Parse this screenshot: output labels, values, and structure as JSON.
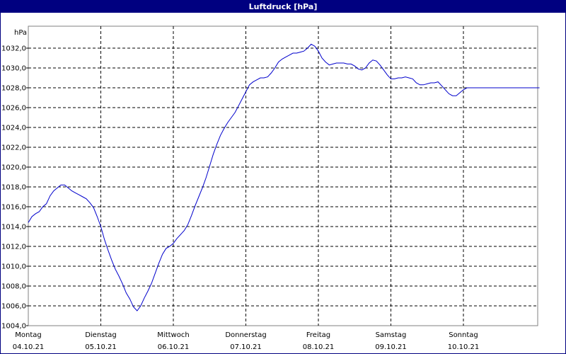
{
  "chart_data": {
    "type": "line",
    "title": "Luftdruck [hPa]",
    "ylabel": "hPa",
    "xlabel": "",
    "ylim": [
      1004.0,
      1033.0
    ],
    "yticks": [
      "1004,0",
      "1006,0",
      "1008,0",
      "1010,0",
      "1012,0",
      "1014,0",
      "1016,0",
      "1018,0",
      "1020,0",
      "1022,0",
      "1024,0",
      "1026,0",
      "1028,0",
      "1030,0",
      "1032,0"
    ],
    "ytick_values": [
      1004,
      1006,
      1008,
      1010,
      1012,
      1014,
      1016,
      1018,
      1020,
      1022,
      1024,
      1026,
      1028,
      1030,
      1032
    ],
    "xticks": [
      {
        "day": "Montag",
        "date": "04.10.21"
      },
      {
        "day": "Dienstag",
        "date": "05.10.21"
      },
      {
        "day": "Mittwoch",
        "date": "06.10.21"
      },
      {
        "day": "Donnerstag",
        "date": "07.10.21"
      },
      {
        "day": "Freitag",
        "date": "08.10.21"
      },
      {
        "day": "Samstag",
        "date": "09.10.21"
      },
      {
        "day": "Sonntag",
        "date": "10.10.21"
      }
    ],
    "xlim_days": [
      0,
      7.1
    ],
    "grid": true,
    "grid_style": "dashed",
    "line_color": "#0000cc",
    "series": [
      {
        "x_days": [
          0,
          0.05,
          0.1,
          0.15,
          0.2,
          0.25,
          0.3,
          0.35,
          0.4,
          0.45,
          0.5,
          0.55,
          0.6,
          0.65,
          0.7,
          0.75,
          0.8,
          0.85,
          0.9,
          0.95,
          1.0,
          1.05,
          1.1,
          1.15,
          1.2,
          1.25,
          1.3,
          1.35,
          1.4,
          1.45,
          1.5,
          1.55,
          1.6,
          1.65,
          1.7,
          1.75,
          1.8,
          1.85,
          1.9,
          1.95,
          2.0,
          2.05,
          2.1,
          2.15,
          2.2,
          2.25,
          2.3,
          2.35,
          2.4,
          2.45,
          2.5,
          2.55,
          2.6,
          2.65,
          2.7,
          2.75,
          2.8,
          2.85,
          2.9,
          2.95,
          3.0,
          3.05,
          3.1,
          3.15,
          3.2,
          3.25,
          3.3,
          3.35,
          3.4,
          3.45,
          3.5,
          3.55,
          3.6,
          3.65,
          3.7,
          3.75,
          3.8,
          3.85,
          3.9,
          3.95,
          4.0,
          4.05,
          4.1,
          4.15,
          4.2,
          4.25,
          4.3,
          4.35,
          4.4,
          4.45,
          4.5,
          4.55,
          4.6,
          4.65,
          4.7,
          4.75,
          4.8,
          4.85,
          4.9,
          4.95,
          5.0,
          5.05,
          5.1,
          5.15,
          5.2,
          5.25,
          5.3,
          5.35,
          5.4,
          5.45,
          5.5,
          5.55,
          5.6,
          5.65,
          5.7,
          5.75,
          5.8,
          5.85,
          5.9,
          5.95,
          6.0,
          6.05,
          6.1,
          6.15,
          6.2,
          6.25,
          6.3,
          6.35,
          6.4,
          6.45,
          6.5,
          6.55,
          6.6,
          6.65,
          6.7,
          6.75,
          6.8,
          6.85,
          6.9,
          6.95,
          7.0,
          7.05
        ],
        "values": [
          1014.4,
          1015.0,
          1015.3,
          1015.5,
          1016.0,
          1016.3,
          1017.1,
          1017.6,
          1017.9,
          1018.2,
          1018.2,
          1017.9,
          1017.6,
          1017.4,
          1017.2,
          1017.0,
          1016.8,
          1016.4,
          1015.9,
          1015.0,
          1014.0,
          1012.7,
          1011.6,
          1010.6,
          1009.7,
          1009.0,
          1008.2,
          1007.3,
          1006.7,
          1005.9,
          1005.5,
          1006.0,
          1006.8,
          1007.5,
          1008.3,
          1009.3,
          1010.3,
          1011.2,
          1011.8,
          1012.0,
          1012.3,
          1012.8,
          1013.2,
          1013.6,
          1014.2,
          1015.1,
          1016.1,
          1017.0,
          1017.9,
          1018.9,
          1020.1,
          1021.3,
          1022.3,
          1023.2,
          1023.9,
          1024.5,
          1025.0,
          1025.5,
          1026.2,
          1026.9,
          1027.6,
          1028.3,
          1028.6,
          1028.8,
          1029.0,
          1029.0,
          1029.1,
          1029.5,
          1030.0,
          1030.6,
          1030.9,
          1031.1,
          1031.3,
          1031.5,
          1031.5,
          1031.6,
          1031.7,
          1032.0,
          1032.4,
          1032.2,
          1031.7,
          1031.0,
          1030.6,
          1030.3,
          1030.4,
          1030.5,
          1030.5,
          1030.5,
          1030.4,
          1030.4,
          1030.2,
          1029.9,
          1029.8,
          1030.0,
          1030.5,
          1030.8,
          1030.7,
          1030.3,
          1029.8,
          1029.3,
          1028.9,
          1028.9,
          1029.0,
          1029.0,
          1029.1,
          1029.0,
          1028.9,
          1028.5,
          1028.3,
          1028.3,
          1028.4,
          1028.5,
          1028.5,
          1028.6,
          1028.2,
          1027.8,
          1027.4,
          1027.2,
          1027.2,
          1027.5,
          1027.8,
          1028.0,
          1028.0,
          1028.0,
          1028.0,
          1028.0,
          1028.0,
          1028.0,
          1028.0,
          1028.0,
          1028.0,
          1028.0,
          1028.0,
          1028.0,
          1028.0,
          1028.0,
          1028.0,
          1028.0,
          1028.0,
          1028.0,
          1028.0,
          1028.0
        ]
      }
    ]
  }
}
